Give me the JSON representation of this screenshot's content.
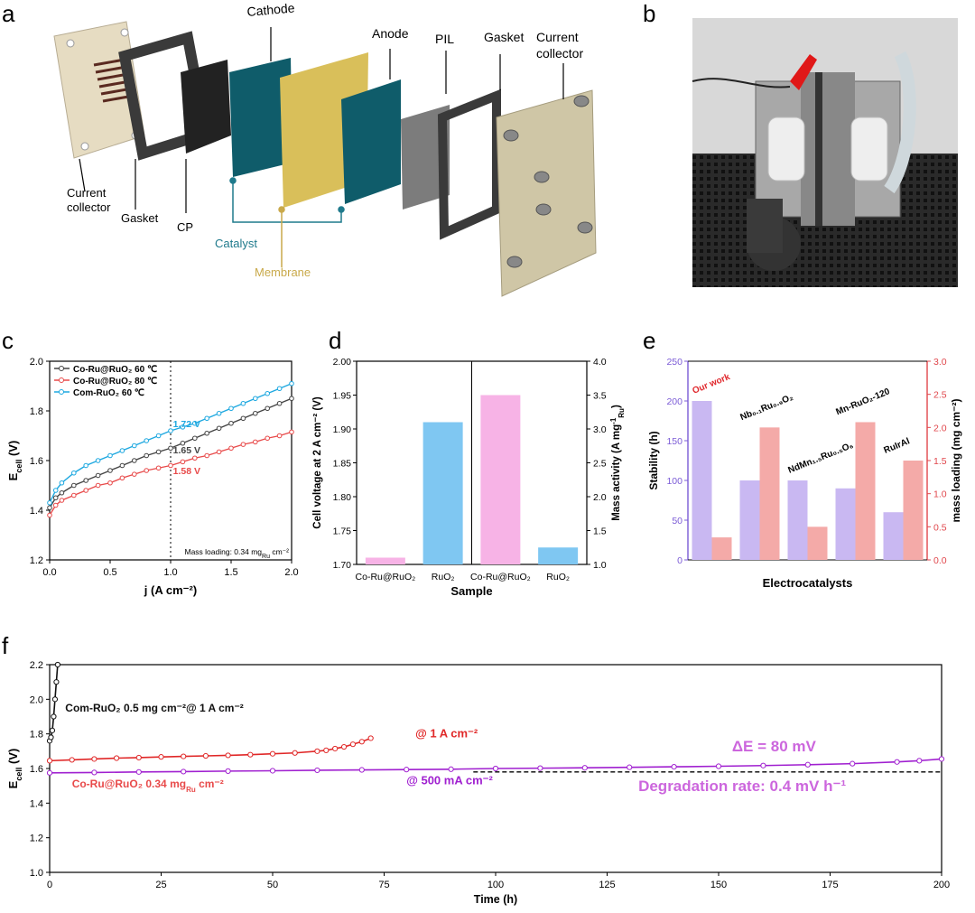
{
  "panel_letters": {
    "a": "a",
    "b": "b",
    "c": "c",
    "d": "d",
    "e": "e",
    "f": "f"
  },
  "diagram": {
    "labels": {
      "cathode": "Cathode",
      "anode": "Anode",
      "pil": "PIL",
      "gasket_top": "Gasket",
      "current_collector_top_1": "Current",
      "current_collector_top_2": "collector",
      "current_collector_left_1": "Current",
      "current_collector_left_2": "collector",
      "gasket_left": "Gasket",
      "cp": "CP",
      "catalyst": "Catalyst",
      "membrane": "Membrane"
    },
    "colors": {
      "catalyst": "#1f7a8c",
      "membrane": "#c9a94a",
      "plate": "#e6dcc2",
      "gasket": "#3a3a3a",
      "cp": "#222222",
      "pil": "#7c7c7c",
      "teal": "#0f5c6a"
    }
  },
  "photo": {
    "description_icon": "electrolyzer-photo"
  },
  "chart_data": [
    {
      "id": "c",
      "type": "line",
      "xlabel": "j (A cm⁻²)",
      "ylabel_main": "E",
      "ylabel_sub": "cell",
      "ylabel_unit": " (V)",
      "xlim": [
        0,
        2.0
      ],
      "ylim": [
        1.2,
        2.0
      ],
      "xticks": [
        "0.0",
        "0.5",
        "1.0",
        "1.5",
        "2.0"
      ],
      "yticks": [
        "1.2",
        "1.4",
        "1.6",
        "1.8",
        "2.0"
      ],
      "legend": [
        "Co-Ru@RuO₂  60 ℃",
        "Co-Ru@RuO₂  80 ℃",
        "Com-RuO₂ 60 ℃"
      ],
      "series": [
        {
          "name": "Co-Ru@RuO₂  60 ℃",
          "color": "#444444",
          "x": [
            0,
            0.05,
            0.1,
            0.2,
            0.3,
            0.4,
            0.5,
            0.6,
            0.7,
            0.8,
            0.9,
            1.0,
            1.1,
            1.2,
            1.3,
            1.4,
            1.5,
            1.6,
            1.7,
            1.8,
            1.9,
            2.0
          ],
          "y": [
            1.41,
            1.45,
            1.47,
            1.5,
            1.52,
            1.54,
            1.56,
            1.58,
            1.6,
            1.62,
            1.635,
            1.65,
            1.67,
            1.69,
            1.71,
            1.73,
            1.75,
            1.77,
            1.79,
            1.81,
            1.83,
            1.85
          ]
        },
        {
          "name": "Co-Ru@RuO₂  80 ℃",
          "color": "#e84a4a",
          "x": [
            0,
            0.05,
            0.1,
            0.2,
            0.3,
            0.4,
            0.5,
            0.6,
            0.7,
            0.8,
            0.9,
            1.0,
            1.1,
            1.2,
            1.3,
            1.4,
            1.5,
            1.6,
            1.7,
            1.8,
            1.9,
            2.0
          ],
          "y": [
            1.38,
            1.42,
            1.44,
            1.46,
            1.48,
            1.5,
            1.51,
            1.53,
            1.545,
            1.56,
            1.57,
            1.58,
            1.595,
            1.61,
            1.62,
            1.635,
            1.65,
            1.665,
            1.675,
            1.69,
            1.7,
            1.715
          ]
        },
        {
          "name": "Com-RuO₂ 60 ℃",
          "color": "#1ea8e0",
          "x": [
            0,
            0.05,
            0.1,
            0.2,
            0.3,
            0.4,
            0.5,
            0.6,
            0.7,
            0.8,
            0.9,
            1.0,
            1.1,
            1.2,
            1.3,
            1.4,
            1.5,
            1.6,
            1.7,
            1.8,
            1.9,
            2.0
          ],
          "y": [
            1.43,
            1.48,
            1.51,
            1.55,
            1.58,
            1.6,
            1.62,
            1.64,
            1.66,
            1.68,
            1.7,
            1.72,
            1.735,
            1.75,
            1.77,
            1.79,
            1.81,
            1.83,
            1.85,
            1.87,
            1.89,
            1.91
          ]
        }
      ],
      "annotations": [
        {
          "text": "1.72 V",
          "x": 1.02,
          "y": 1.735,
          "color": "#1ea8e0"
        },
        {
          "text": "1.65 V",
          "x": 1.02,
          "y": 1.63,
          "color": "#444444"
        },
        {
          "text": "1.58 V",
          "x": 1.02,
          "y": 1.545,
          "color": "#e84a4a"
        }
      ],
      "vline_x": 1.0,
      "note": "Mass loading: 0.34 mg",
      "note_sub": "Ru",
      "note_tail": " cm⁻²"
    },
    {
      "id": "d",
      "type": "bar",
      "xlabel": "Sample",
      "ylabel_left": "Cell voltage at 2 A cm⁻² (V)",
      "ylabel_right_main": "Mass activity (A mg",
      "ylabel_right_sup": "-1",
      "ylabel_right_sub": "Ru",
      "ylabel_right_tail": ")",
      "ylim_left": [
        1.7,
        2.0
      ],
      "ylim_right": [
        1.0,
        4.0
      ],
      "yticks_left": [
        "1.70",
        "1.75",
        "1.80",
        "1.85",
        "1.90",
        "1.95",
        "2.00"
      ],
      "yticks_right": [
        "1.0",
        "1.5",
        "2.0",
        "2.5",
        "3.0",
        "3.5",
        "4.0"
      ],
      "categories": [
        "Co-Ru@RuO₂",
        "RuO₂",
        "Co-Ru@RuO₂",
        "RuO₂"
      ],
      "bars": [
        {
          "axis": "left",
          "value": 1.71,
          "color": "#f7b3e6"
        },
        {
          "axis": "left",
          "value": 1.91,
          "color": "#7fc7f2"
        },
        {
          "axis": "right",
          "value": 3.5,
          "color": "#f7b3e6"
        },
        {
          "axis": "right",
          "value": 1.25,
          "color": "#7fc7f2"
        }
      ]
    },
    {
      "id": "e",
      "type": "bar",
      "xlabel": "Electrocatalysts",
      "ylabel_left": "Stability (h)",
      "ylabel_right": "mass loading (mg cm⁻²)",
      "ylim_left": [
        0,
        250
      ],
      "ylim_right": [
        0,
        3.0
      ],
      "yticks_left": [
        "0",
        "50",
        "100",
        "150",
        "200",
        "250"
      ],
      "yticks_right": [
        "0.0",
        "0.5",
        "1.0",
        "1.5",
        "2.0",
        "2.5",
        "3.0"
      ],
      "left_color": "#7b5bd6",
      "right_color": "#e0474c",
      "groups": [
        {
          "label": "Our work",
          "stability": 200,
          "loading": 0.34,
          "label_color": "#e0272c"
        },
        {
          "label": "Nb₀.₁Ru₀.₉O₂",
          "stability": 100,
          "loading": 2.0,
          "label_color": "#000000"
        },
        {
          "label": "NdMn₁.₅Ru₀.₅O₆",
          "stability": 100,
          "loading": 0.5,
          "label_color": "#000000"
        },
        {
          "label": "Mn-RuO₂-120",
          "stability": 90,
          "loading": 2.08,
          "label_color": "#000000"
        },
        {
          "label": "RuIrAl",
          "stability": 60,
          "loading": 1.5,
          "label_color": "#000000"
        }
      ],
      "stability_color": "#c9b8f2",
      "loading_color": "#f4aaa8"
    },
    {
      "id": "f",
      "type": "line",
      "xlabel": "Time (h)",
      "ylabel_main": "E",
      "ylabel_sub": "cell",
      "ylabel_unit": " (V)",
      "xlim": [
        0,
        200
      ],
      "ylim": [
        1.0,
        2.2
      ],
      "xticks": [
        "0",
        "25",
        "50",
        "75",
        "100",
        "125",
        "150",
        "175",
        "200"
      ],
      "yticks": [
        "1.0",
        "1.2",
        "1.4",
        "1.6",
        "1.8",
        "2.0",
        "2.2"
      ],
      "series": [
        {
          "name": "Com-RuO₂",
          "color": "#111111",
          "x": [
            0,
            0.3,
            0.6,
            0.9,
            1.2,
            1.5,
            1.8
          ],
          "y": [
            1.76,
            1.78,
            1.82,
            1.9,
            2.0,
            2.1,
            2.2
          ]
        },
        {
          "name": "Co-Ru@RuO₂ @ 1 A cm⁻²",
          "color": "#e02828",
          "x": [
            0,
            5,
            10,
            15,
            20,
            25,
            30,
            35,
            40,
            45,
            50,
            55,
            60,
            62,
            64,
            66,
            68,
            70,
            72
          ],
          "y": [
            1.645,
            1.65,
            1.655,
            1.66,
            1.663,
            1.667,
            1.67,
            1.673,
            1.676,
            1.68,
            1.685,
            1.69,
            1.7,
            1.705,
            1.715,
            1.725,
            1.74,
            1.755,
            1.775
          ]
        },
        {
          "name": "Co-Ru@RuO₂ @ 500 mA cm⁻²",
          "color": "#a020d0",
          "x": [
            0,
            10,
            20,
            30,
            40,
            50,
            60,
            70,
            80,
            90,
            100,
            110,
            120,
            130,
            140,
            150,
            160,
            170,
            180,
            190,
            195,
            200
          ],
          "y": [
            1.575,
            1.577,
            1.58,
            1.582,
            1.585,
            1.587,
            1.59,
            1.592,
            1.594,
            1.596,
            1.6,
            1.602,
            1.604,
            1.607,
            1.61,
            1.613,
            1.617,
            1.622,
            1.628,
            1.638,
            1.645,
            1.655
          ]
        }
      ],
      "baseline_y": 1.58,
      "annotations": [
        {
          "text_main": "Com-RuO₂  0.5 mg cm⁻²@ 1 A cm⁻²",
          "color": "#111111"
        },
        {
          "text_main": "@ 1 A cm⁻²",
          "color": "#e02828"
        },
        {
          "text_main": "ΔE = 80 mV",
          "color": "#cc66dd"
        },
        {
          "text_main": "Co-Ru@RuO₂  0.34 mg",
          "sub": "Ru",
          "tail": " cm⁻²",
          "color": "#e84a4a"
        },
        {
          "text_main": "@ 500 mA cm⁻²",
          "color": "#a020d0"
        },
        {
          "text_main": "Degradation rate: 0.4 mV h⁻¹",
          "color": "#cc66dd"
        }
      ]
    }
  ]
}
